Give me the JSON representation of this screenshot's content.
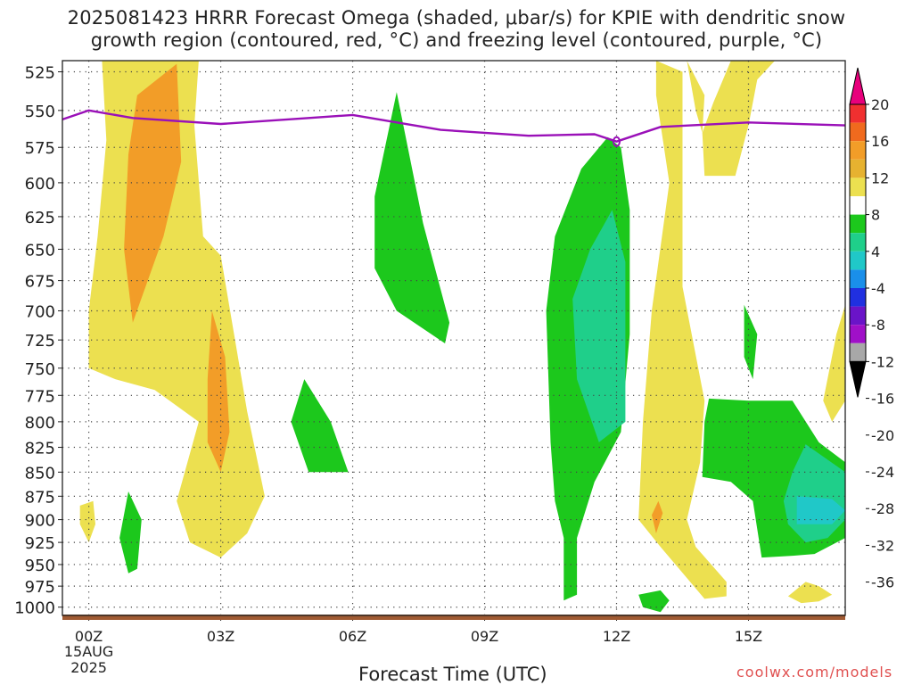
{
  "chart_data": {
    "type": "heatmap",
    "title_line1": "2025081423 HRRR Forecast Omega (shaded, μbar/s) for KPIE with dendritic snow",
    "title_line2": "growth region (contoured, red, °C) and freezing level (contoured, purple, °C)",
    "xlabel": "Forecast Time (UTC)",
    "credit": "coolwx.com/models",
    "x_range_hours": [
      -0.6,
      17.2
    ],
    "y_axis": {
      "label": "",
      "range_hpa": [
        1010,
        518
      ],
      "ticks": [
        525,
        550,
        575,
        600,
        625,
        650,
        675,
        700,
        725,
        750,
        775,
        800,
        825,
        850,
        875,
        900,
        925,
        950,
        975,
        1000
      ]
    },
    "x_ticks": [
      {
        "hour": 0,
        "label": "00Z",
        "sub1": "15AUG",
        "sub2": "2025"
      },
      {
        "hour": 3,
        "label": "03Z"
      },
      {
        "hour": 6,
        "label": "06Z"
      },
      {
        "hour": 9,
        "label": "09Z"
      },
      {
        "hour": 12,
        "label": "12Z"
      },
      {
        "hour": 15,
        "label": "15Z"
      }
    ],
    "colorbar": {
      "labels": [
        "20",
        "16",
        "12",
        "8",
        "4",
        "-4",
        "-8",
        "-12",
        "-16",
        "-20",
        "-24",
        "-28",
        "-32",
        "-36"
      ],
      "colors": [
        "#e8007c",
        "#f03030",
        "#f06a1e",
        "#f29d28",
        "#e6b230",
        "#ece050",
        "#ffffff",
        "#1cc81c",
        "#1fcf8a",
        "#20c8c8",
        "#1a8fea",
        "#2030e0",
        "#6a14c8",
        "#a010c8",
        "#a8a8a8",
        "#000000"
      ]
    },
    "legend": {
      "location": "right",
      "kind": "colorbar"
    },
    "freezing_level": {
      "color": "#9a10b8",
      "points": [
        [
          -0.6,
          556
        ],
        [
          0,
          550
        ],
        [
          1,
          555
        ],
        [
          3,
          559
        ],
        [
          5,
          555
        ],
        [
          6,
          553
        ],
        [
          8,
          563
        ],
        [
          10,
          567
        ],
        [
          11.5,
          566
        ],
        [
          12,
          571
        ],
        [
          13,
          561
        ],
        [
          15,
          558
        ],
        [
          17.2,
          560
        ]
      ]
    },
    "ground_color": "#a05a32",
    "shaded_regions": [
      {
        "fill": "#ece050",
        "pts": [
          [
            0.3,
            518
          ],
          [
            2.5,
            518
          ],
          [
            2.4,
            560
          ],
          [
            2.6,
            640
          ],
          [
            3.0,
            655
          ],
          [
            3.6,
            790
          ],
          [
            4.0,
            875
          ],
          [
            3.6,
            915
          ],
          [
            3.0,
            942
          ],
          [
            2.3,
            925
          ],
          [
            2.0,
            880
          ],
          [
            2.5,
            800
          ],
          [
            1.5,
            770
          ],
          [
            0.6,
            760
          ],
          [
            0,
            750
          ],
          [
            0,
            700
          ],
          [
            0.2,
            640
          ],
          [
            0.4,
            570
          ]
        ]
      },
      {
        "fill": "#f29d28",
        "pts": [
          [
            1.1,
            540
          ],
          [
            2.0,
            520
          ],
          [
            2.1,
            585
          ],
          [
            1.7,
            640
          ],
          [
            1.0,
            710
          ],
          [
            0.8,
            650
          ],
          [
            0.9,
            580
          ]
        ]
      },
      {
        "fill": "#f29d28",
        "pts": [
          [
            2.8,
            700
          ],
          [
            3.1,
            740
          ],
          [
            3.2,
            810
          ],
          [
            3.0,
            850
          ],
          [
            2.7,
            820
          ],
          [
            2.7,
            760
          ]
        ]
      },
      {
        "fill": "#ece050",
        "pts": [
          [
            -0.2,
            885
          ],
          [
            0.1,
            880
          ],
          [
            0.15,
            905
          ],
          [
            0.0,
            925
          ],
          [
            -0.2,
            905
          ]
        ]
      },
      {
        "fill": "#1cc81c",
        "pts": [
          [
            0.9,
            870
          ],
          [
            1.2,
            900
          ],
          [
            1.1,
            955
          ],
          [
            0.9,
            960
          ],
          [
            0.7,
            920
          ]
        ]
      },
      {
        "fill": "#1cc81c",
        "pts": [
          [
            4.9,
            760
          ],
          [
            5.5,
            800
          ],
          [
            5.9,
            850
          ],
          [
            5.0,
            850
          ],
          [
            4.6,
            800
          ]
        ]
      },
      {
        "fill": "#1cc81c",
        "pts": [
          [
            7.0,
            538
          ],
          [
            7.6,
            630
          ],
          [
            8.2,
            710
          ],
          [
            8.1,
            728
          ],
          [
            7.0,
            700
          ],
          [
            6.5,
            665
          ],
          [
            6.5,
            610
          ]
        ]
      },
      {
        "fill": "#1cc81c",
        "pts": [
          [
            11.8,
            568
          ],
          [
            12.1,
            575
          ],
          [
            12.3,
            620
          ],
          [
            12.3,
            720
          ],
          [
            12.1,
            810
          ],
          [
            11.5,
            860
          ],
          [
            11.1,
            920
          ],
          [
            11.1,
            985
          ],
          [
            10.8,
            992
          ],
          [
            10.8,
            960
          ],
          [
            10.8,
            920
          ],
          [
            10.6,
            880
          ],
          [
            10.5,
            820
          ],
          [
            10.4,
            700
          ],
          [
            10.6,
            640
          ],
          [
            11.2,
            590
          ]
        ]
      },
      {
        "fill": "#1fcf8a",
        "pts": [
          [
            11.9,
            620
          ],
          [
            12.2,
            660
          ],
          [
            12.2,
            800
          ],
          [
            11.6,
            820
          ],
          [
            11.1,
            760
          ],
          [
            11.0,
            690
          ],
          [
            11.4,
            650
          ]
        ]
      },
      {
        "fill": "#ece050",
        "pts": [
          [
            12.9,
            518
          ],
          [
            13.5,
            525
          ],
          [
            13.5,
            600
          ],
          [
            13.5,
            680
          ],
          [
            14.0,
            780
          ],
          [
            13.9,
            840
          ],
          [
            13.6,
            900
          ],
          [
            13.8,
            930
          ],
          [
            14.5,
            970
          ],
          [
            14.5,
            987
          ],
          [
            14.0,
            990
          ],
          [
            13.0,
            930
          ],
          [
            12.5,
            900
          ],
          [
            12.6,
            800
          ],
          [
            12.8,
            700
          ],
          [
            13.2,
            600
          ],
          [
            12.9,
            540
          ]
        ]
      },
      {
        "fill": "#f29d28",
        "pts": [
          [
            12.95,
            880
          ],
          [
            13.05,
            893
          ],
          [
            12.9,
            915
          ],
          [
            12.8,
            895
          ]
        ]
      },
      {
        "fill": "#1cc81c",
        "pts": [
          [
            12.5,
            985
          ],
          [
            13.0,
            980
          ],
          [
            13.2,
            992
          ],
          [
            13.0,
            1006
          ],
          [
            12.6,
            1000
          ]
        ]
      },
      {
        "fill": "#ece050",
        "pts": [
          [
            13.6,
            518
          ],
          [
            14.0,
            540
          ],
          [
            13.95,
            565
          ],
          [
            13.8,
            550
          ]
        ]
      },
      {
        "fill": "#ece050",
        "pts": [
          [
            14.6,
            518
          ],
          [
            15.6,
            518
          ],
          [
            15.2,
            530
          ],
          [
            15.0,
            560
          ],
          [
            14.7,
            595
          ],
          [
            14.0,
            595
          ],
          [
            13.95,
            565
          ],
          [
            14.2,
            545
          ]
        ]
      },
      {
        "fill": "#1cc81c",
        "pts": [
          [
            14.9,
            695
          ],
          [
            15.2,
            720
          ],
          [
            15.1,
            760
          ],
          [
            15.0,
            780
          ],
          [
            14.1,
            778
          ],
          [
            14.0,
            800
          ],
          [
            13.95,
            855
          ],
          [
            14.6,
            860
          ],
          [
            15.1,
            880
          ],
          [
            15.3,
            942
          ],
          [
            16.0,
            940
          ],
          [
            16.5,
            938
          ],
          [
            17.2,
            920
          ],
          [
            17.2,
            840
          ],
          [
            16.6,
            820
          ],
          [
            16.0,
            780
          ],
          [
            15.0,
            780
          ],
          [
            15.1,
            760
          ],
          [
            14.9,
            740
          ]
        ]
      },
      {
        "fill": "#1fcf8a",
        "pts": [
          [
            16.3,
            822
          ],
          [
            17.2,
            850
          ],
          [
            17.2,
            900
          ],
          [
            16.8,
            920
          ],
          [
            16.3,
            925
          ],
          [
            15.9,
            905
          ],
          [
            15.8,
            880
          ],
          [
            16.0,
            850
          ]
        ]
      },
      {
        "fill": "#20c8c8",
        "pts": [
          [
            16.1,
            875
          ],
          [
            16.9,
            878
          ],
          [
            17.2,
            890
          ],
          [
            16.9,
            905
          ],
          [
            16.1,
            905
          ]
        ]
      },
      {
        "fill": "#ece050",
        "pts": [
          [
            17.2,
            695
          ],
          [
            17.0,
            720
          ],
          [
            16.7,
            780
          ],
          [
            16.9,
            800
          ],
          [
            17.2,
            780
          ]
        ]
      },
      {
        "fill": "#ece050",
        "pts": [
          [
            16.3,
            970
          ],
          [
            16.6,
            975
          ],
          [
            16.9,
            985
          ],
          [
            16.6,
            993
          ],
          [
            16.2,
            995
          ],
          [
            15.9,
            987
          ]
        ]
      }
    ]
  }
}
